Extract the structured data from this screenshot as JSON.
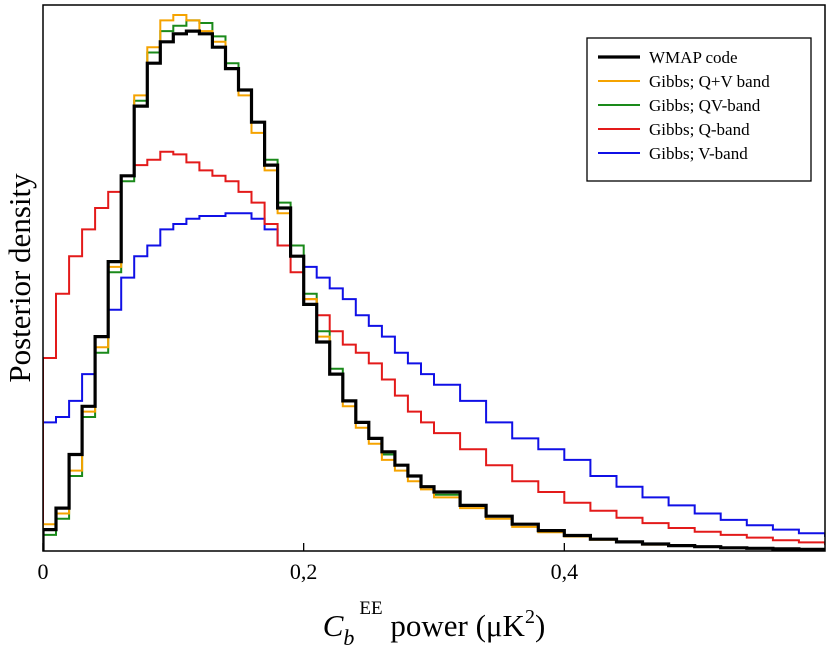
{
  "chart_data": {
    "type": "line",
    "style": "step",
    "title": "",
    "xlabel": {
      "prefix": "C",
      "subscript": "b",
      "superscript": "EE",
      "suffix": " power (μK",
      "suffix_sup": "2",
      "suffix_end": ")"
    },
    "ylabel": "Posterior density",
    "xlim": [
      0,
      0.6
    ],
    "ylim": [
      0,
      1.0
    ],
    "x_ticks": [
      {
        "value": 0.0,
        "label": "0"
      },
      {
        "value": 0.2,
        "label": "0,2"
      },
      {
        "value": 0.4,
        "label": "0,4"
      }
    ],
    "y_ticks_shown": false,
    "legend_position": "top-right",
    "series": [
      {
        "name": "WMAP code",
        "color": "#000000",
        "emphasis": "thick",
        "x": [
          0.0,
          0.01,
          0.02,
          0.03,
          0.04,
          0.05,
          0.06,
          0.07,
          0.08,
          0.09,
          0.1,
          0.11,
          0.12,
          0.13,
          0.14,
          0.15,
          0.16,
          0.17,
          0.18,
          0.19,
          0.2,
          0.21,
          0.22,
          0.23,
          0.24,
          0.25,
          0.26,
          0.27,
          0.28,
          0.29,
          0.3,
          0.32,
          0.34,
          0.36,
          0.38,
          0.4,
          0.42,
          0.44,
          0.46,
          0.48,
          0.5,
          0.52,
          0.54,
          0.56,
          0.58,
          0.6
        ],
        "y": [
          0.04,
          0.08,
          0.18,
          0.27,
          0.4,
          0.54,
          0.7,
          0.83,
          0.91,
          0.95,
          0.965,
          0.97,
          0.965,
          0.94,
          0.9,
          0.86,
          0.8,
          0.72,
          0.64,
          0.55,
          0.46,
          0.39,
          0.33,
          0.28,
          0.24,
          0.21,
          0.185,
          0.16,
          0.14,
          0.12,
          0.11,
          0.085,
          0.065,
          0.05,
          0.038,
          0.029,
          0.022,
          0.017,
          0.013,
          0.01,
          0.008,
          0.006,
          0.005,
          0.004,
          0.003,
          0.002
        ]
      },
      {
        "name": "Gibbs; Q+V band",
        "color": "#f5a300",
        "emphasis": "normal",
        "x": [
          0.0,
          0.01,
          0.02,
          0.03,
          0.04,
          0.05,
          0.06,
          0.07,
          0.08,
          0.09,
          0.1,
          0.11,
          0.12,
          0.13,
          0.14,
          0.15,
          0.16,
          0.17,
          0.18,
          0.19,
          0.2,
          0.21,
          0.22,
          0.23,
          0.24,
          0.25,
          0.26,
          0.27,
          0.28,
          0.29,
          0.3,
          0.32,
          0.34,
          0.36,
          0.38,
          0.4,
          0.42,
          0.44,
          0.46,
          0.48,
          0.5,
          0.52,
          0.54,
          0.56,
          0.58,
          0.6
        ],
        "y": [
          0.05,
          0.07,
          0.15,
          0.26,
          0.38,
          0.53,
          0.7,
          0.85,
          0.94,
          0.99,
          1.0,
          0.99,
          0.97,
          0.95,
          0.9,
          0.85,
          0.78,
          0.71,
          0.63,
          0.55,
          0.47,
          0.4,
          0.33,
          0.27,
          0.23,
          0.2,
          0.17,
          0.15,
          0.13,
          0.115,
          0.1,
          0.08,
          0.06,
          0.045,
          0.035,
          0.027,
          0.021,
          0.016,
          0.012,
          0.01,
          0.008,
          0.006,
          0.005,
          0.004,
          0.003,
          0.002
        ]
      },
      {
        "name": "Gibbs; QV-band",
        "color": "#1a8a1a",
        "emphasis": "normal",
        "x": [
          0.0,
          0.01,
          0.02,
          0.03,
          0.04,
          0.05,
          0.06,
          0.07,
          0.08,
          0.09,
          0.1,
          0.11,
          0.12,
          0.13,
          0.14,
          0.15,
          0.16,
          0.17,
          0.18,
          0.19,
          0.2,
          0.21,
          0.22,
          0.23,
          0.24,
          0.25,
          0.26,
          0.27,
          0.28,
          0.29,
          0.3,
          0.32,
          0.34,
          0.36,
          0.38,
          0.4,
          0.42,
          0.44,
          0.46,
          0.48,
          0.5,
          0.52,
          0.54,
          0.56,
          0.58,
          0.6
        ],
        "y": [
          0.03,
          0.06,
          0.14,
          0.25,
          0.37,
          0.52,
          0.69,
          0.84,
          0.93,
          0.97,
          0.98,
          0.99,
          0.985,
          0.96,
          0.91,
          0.86,
          0.8,
          0.73,
          0.65,
          0.57,
          0.48,
          0.41,
          0.34,
          0.28,
          0.24,
          0.21,
          0.18,
          0.16,
          0.14,
          0.12,
          0.105,
          0.085,
          0.065,
          0.05,
          0.037,
          0.028,
          0.022,
          0.017,
          0.013,
          0.01,
          0.008,
          0.006,
          0.005,
          0.004,
          0.003,
          0.002
        ]
      },
      {
        "name": "Gibbs; Q-band",
        "color": "#e31a1a",
        "emphasis": "normal",
        "x": [
          0.0,
          0.01,
          0.02,
          0.03,
          0.04,
          0.05,
          0.06,
          0.07,
          0.08,
          0.09,
          0.1,
          0.11,
          0.12,
          0.13,
          0.14,
          0.15,
          0.16,
          0.17,
          0.18,
          0.19,
          0.2,
          0.21,
          0.22,
          0.23,
          0.24,
          0.25,
          0.26,
          0.27,
          0.28,
          0.29,
          0.3,
          0.32,
          0.34,
          0.36,
          0.38,
          0.4,
          0.42,
          0.44,
          0.46,
          0.48,
          0.5,
          0.52,
          0.54,
          0.56,
          0.58,
          0.6
        ],
        "y": [
          0.36,
          0.48,
          0.55,
          0.6,
          0.64,
          0.67,
          0.7,
          0.72,
          0.73,
          0.745,
          0.74,
          0.725,
          0.71,
          0.7,
          0.69,
          0.67,
          0.65,
          0.61,
          0.57,
          0.52,
          0.47,
          0.44,
          0.41,
          0.385,
          0.37,
          0.35,
          0.32,
          0.29,
          0.26,
          0.24,
          0.22,
          0.19,
          0.16,
          0.13,
          0.11,
          0.09,
          0.075,
          0.062,
          0.052,
          0.043,
          0.036,
          0.03,
          0.025,
          0.02,
          0.016,
          0.013
        ]
      },
      {
        "name": "Gibbs; V-band",
        "color": "#1010e6",
        "emphasis": "normal",
        "x": [
          0.0,
          0.01,
          0.02,
          0.03,
          0.04,
          0.05,
          0.06,
          0.07,
          0.08,
          0.09,
          0.1,
          0.11,
          0.12,
          0.13,
          0.14,
          0.15,
          0.16,
          0.17,
          0.18,
          0.19,
          0.2,
          0.21,
          0.22,
          0.23,
          0.24,
          0.25,
          0.26,
          0.27,
          0.28,
          0.29,
          0.3,
          0.32,
          0.34,
          0.36,
          0.38,
          0.4,
          0.42,
          0.44,
          0.46,
          0.48,
          0.5,
          0.52,
          0.54,
          0.56,
          0.58,
          0.6
        ],
        "y": [
          0.24,
          0.25,
          0.28,
          0.33,
          0.4,
          0.45,
          0.51,
          0.55,
          0.57,
          0.6,
          0.61,
          0.62,
          0.625,
          0.625,
          0.63,
          0.63,
          0.62,
          0.6,
          0.57,
          0.55,
          0.53,
          0.51,
          0.49,
          0.47,
          0.44,
          0.42,
          0.4,
          0.37,
          0.35,
          0.33,
          0.31,
          0.28,
          0.24,
          0.21,
          0.19,
          0.17,
          0.14,
          0.12,
          0.1,
          0.085,
          0.07,
          0.058,
          0.048,
          0.04,
          0.033,
          0.028
        ]
      }
    ]
  }
}
